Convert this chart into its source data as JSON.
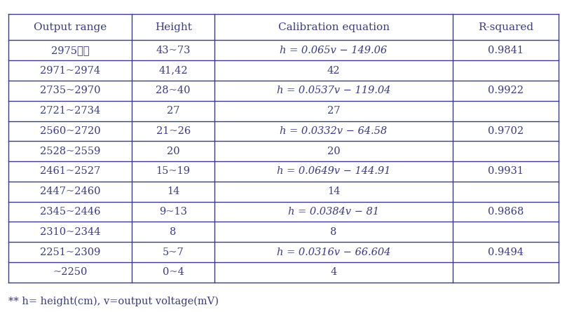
{
  "headers": [
    "Output range",
    "Height",
    "Calibration equation",
    "R-squared"
  ],
  "rows": [
    [
      "2975이상",
      "43~73",
      "eq",
      "0.9841"
    ],
    [
      "2971~2974",
      "41,42",
      "42",
      ""
    ],
    [
      "2735~2970",
      "28~40",
      "eq",
      "0.9922"
    ],
    [
      "2721~2734",
      "27",
      "27",
      ""
    ],
    [
      "2560~2720",
      "21~26",
      "eq",
      "0.9702"
    ],
    [
      "2528~2559",
      "20",
      "20",
      ""
    ],
    [
      "2461~2527",
      "15~19",
      "eq",
      "0.9931"
    ],
    [
      "2447~2460",
      "14",
      "14",
      ""
    ],
    [
      "2345~2446",
      "9~13",
      "eq",
      "0.9868"
    ],
    [
      "2310~2344",
      "8",
      "8",
      ""
    ],
    [
      "2251~2309",
      "5~7",
      "eq",
      "0.9494"
    ],
    [
      "~2250",
      "0~4",
      "4",
      ""
    ]
  ],
  "col0_texts": [
    "2975이상",
    "2971~2974",
    "2735~2970",
    "2721~2734",
    "2560~2720",
    "2528~2559",
    "2461~2527",
    "2447~2460",
    "2345~2446",
    "2310~2344",
    "2251~2309",
    "~2250"
  ],
  "col1_texts": [
    "43~73",
    "41,42",
    "28~40",
    "27",
    "21~26",
    "20",
    "15~19",
    "14",
    "9~13",
    "8",
    "5~7",
    "0~4"
  ],
  "col2_plain": [
    "42",
    "27",
    "20",
    "14",
    "8",
    "4"
  ],
  "col2_plain_rows": [
    1,
    3,
    5,
    7,
    9,
    11
  ],
  "col2_eq_rows": [
    0,
    2,
    4,
    6,
    8,
    10
  ],
  "equations": [
    "h = 0.065v − 149.06",
    "h = 0.0537v − 119.04",
    "h = 0.0332v − 64.58",
    "h = 0.0649v − 144.91",
    "h = 0.0384v − 81",
    "h = 0.0316v − 66.604"
  ],
  "col3_texts": [
    "0.9841",
    "",
    "0.9922",
    "",
    "0.9702",
    "",
    "0.9931",
    "",
    "0.9868",
    "",
    "0.9494",
    ""
  ],
  "footnote": "** h= height(cm), v=output voltage(mV)",
  "text_color": "#3a3a8c",
  "line_color": "#3a3a8c",
  "bg_color": "#ffffff",
  "font_size": 10.5,
  "header_font_size": 11.0,
  "fig_width": 8.09,
  "fig_height": 4.45,
  "dpi": 100
}
